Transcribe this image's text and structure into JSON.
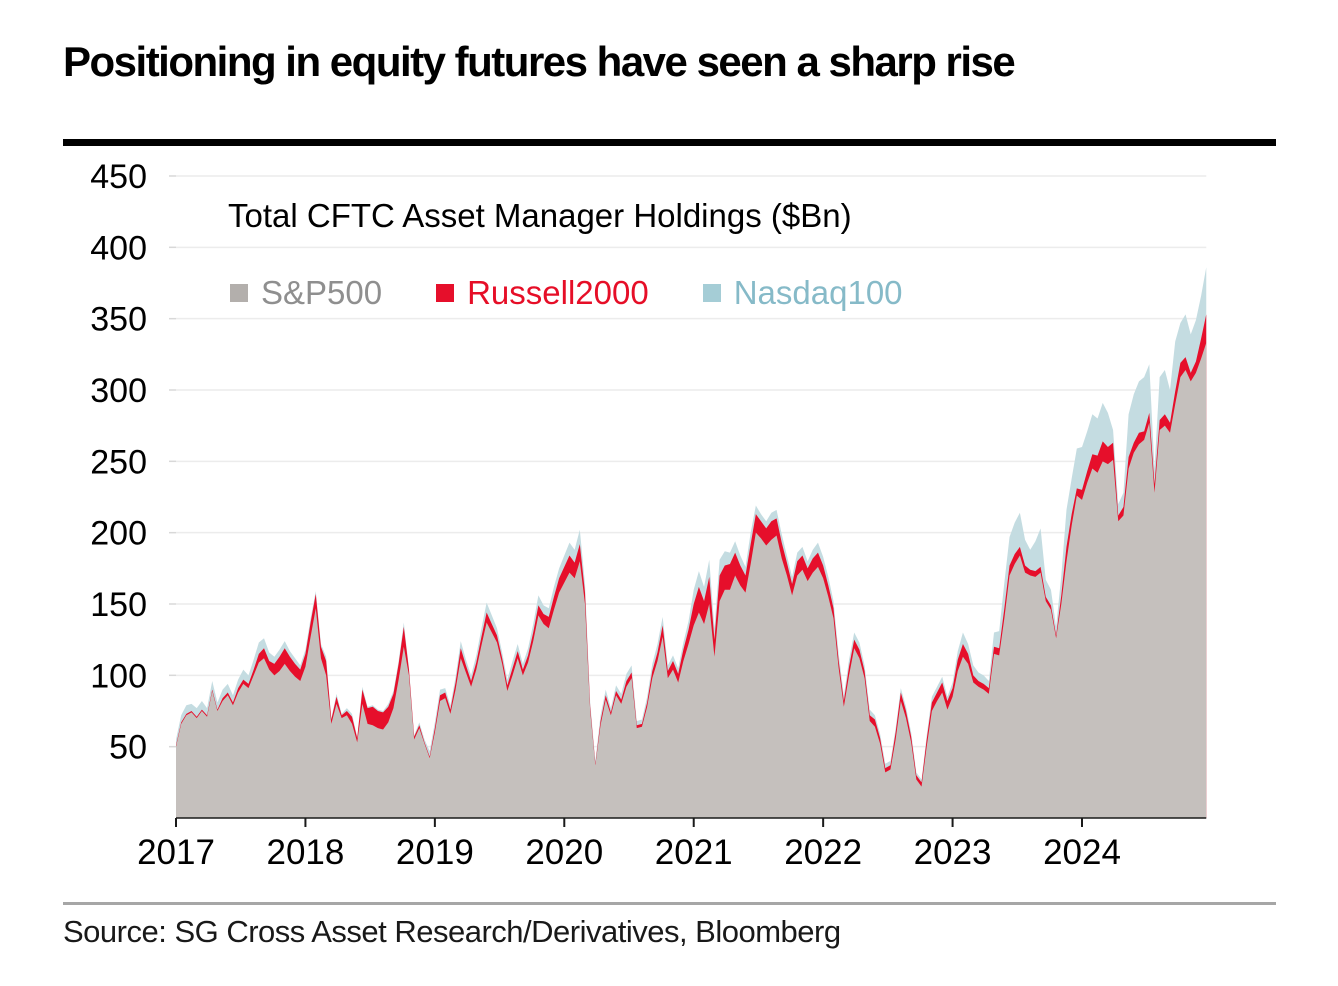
{
  "header": {
    "title": "Positioning in equity futures have seen a sharp rise"
  },
  "footer": {
    "source": "Source: SG Cross Asset Research/Derivatives, Bloomberg"
  },
  "colors": {
    "top_rule": "#000000",
    "source_rule": "#a6a6a6",
    "grid": "#ececec",
    "axis": "#1a1a1a",
    "tick_label": "#000000"
  },
  "chart_data": {
    "type": "area",
    "stacked": true,
    "title": "Total CFTC Asset Manager Holdings ($Bn)",
    "xlabel": "",
    "ylabel": "",
    "x_unit": "year",
    "x_start_year": 2017.0,
    "x_step_years": 0.04,
    "x_tick_labels": [
      "2017",
      "2018",
      "2019",
      "2020",
      "2021",
      "2022",
      "2023",
      "2024"
    ],
    "y_ticks": [
      50,
      100,
      150,
      200,
      250,
      300,
      350,
      400,
      450
    ],
    "ylim": [
      0,
      465
    ],
    "grid": "horizontal",
    "legend_position": "top-left-inside",
    "series": [
      {
        "name": "S&P500",
        "area_color": "#c5c0bd",
        "swatch_color": "#b3afac",
        "label_color": "#8f8f8f",
        "values": [
          50,
          66,
          72,
          74,
          70,
          75,
          71,
          89,
          75,
          82,
          86,
          79,
          88,
          94,
          91,
          100,
          109,
          112,
          104,
          100,
          103,
          108,
          103,
          99,
          96,
          106,
          127,
          147,
          112,
          100,
          66,
          80,
          70,
          72,
          66,
          53,
          80,
          66,
          65,
          63,
          62,
          67,
          77,
          97,
          120,
          100,
          55,
          63,
          52,
          42,
          60,
          82,
          84,
          73,
          90,
          112,
          102,
          92,
          104,
          121,
          137,
          130,
          123,
          108,
          89,
          100,
          112,
          100,
          109,
          124,
          142,
          136,
          133,
          146,
          158,
          165,
          172,
          168,
          180,
          150,
          75,
          37,
          65,
          83,
          72,
          86,
          80,
          92,
          98,
          63,
          64,
          78,
          98,
          110,
          127,
          98,
          104,
          95,
          110,
          122,
          135,
          144,
          136,
          150,
          113,
          152,
          160,
          160,
          170,
          163,
          158,
          178,
          200,
          196,
          191,
          195,
          198,
          182,
          170,
          156,
          170,
          174,
          166,
          172,
          176,
          168,
          155,
          140,
          105,
          78,
          100,
          119,
          112,
          98,
          68,
          64,
          52,
          32,
          34,
          55,
          82,
          70,
          53,
          27,
          22,
          50,
          75,
          82,
          88,
          76,
          85,
          103,
          113,
          108,
          95,
          92,
          90,
          87,
          115,
          114,
          140,
          170,
          178,
          184,
          172,
          170,
          169,
          172,
          152,
          146,
          126,
          150,
          180,
          205,
          226,
          223,
          235,
          245,
          242,
          250,
          248,
          251,
          208,
          212,
          245,
          256,
          262,
          265,
          277,
          228,
          272,
          275,
          270,
          290,
          309,
          314,
          306,
          312,
          322,
          333
        ]
      },
      {
        "name": "Russell2000",
        "area_color": "#e60f2b",
        "swatch_color": "#e60f2b",
        "label_color": "#e60e27",
        "values": [
          1,
          1,
          1,
          1,
          1,
          1,
          1,
          1,
          1,
          2,
          2,
          2,
          3,
          3,
          3,
          4,
          6,
          7,
          6,
          8,
          10,
          11,
          10,
          9,
          8,
          9,
          10,
          10,
          8,
          10,
          3,
          5,
          2,
          3,
          5,
          3,
          10,
          11,
          13,
          12,
          12,
          11,
          10,
          11,
          14,
          4,
          2,
          2,
          1,
          1,
          3,
          4,
          4,
          3,
          5,
          7,
          5,
          4,
          5,
          6,
          7,
          6,
          5,
          4,
          4,
          5,
          5,
          4,
          5,
          6,
          7,
          7,
          8,
          9,
          10,
          11,
          12,
          11,
          12,
          8,
          3,
          1,
          3,
          3,
          2,
          3,
          3,
          4,
          4,
          2,
          2,
          3,
          5,
          6,
          8,
          5,
          6,
          6,
          8,
          10,
          15,
          18,
          16,
          19,
          12,
          18,
          17,
          18,
          16,
          14,
          12,
          14,
          13,
          12,
          12,
          13,
          12,
          11,
          9,
          8,
          10,
          10,
          9,
          10,
          10,
          9,
          8,
          7,
          5,
          4,
          6,
          6,
          6,
          5,
          4,
          5,
          4,
          3,
          3,
          5,
          6,
          5,
          4,
          3,
          3,
          5,
          6,
          6,
          7,
          6,
          6,
          8,
          9,
          7,
          5,
          4,
          4,
          4,
          5,
          5,
          7,
          7,
          7,
          6,
          5,
          4,
          4,
          4,
          3,
          3,
          2,
          6,
          10,
          8,
          5,
          7,
          8,
          10,
          12,
          14,
          12,
          12,
          4,
          6,
          8,
          7,
          8,
          6,
          7,
          6,
          7,
          8,
          7,
          9,
          10,
          9,
          6,
          8,
          14,
          20
        ]
      },
      {
        "name": "Nasdaq100",
        "area_color": "#c4dce1",
        "swatch_color": "#a5cdd6",
        "label_color": "#86bac8",
        "values": [
          4,
          5,
          6,
          5,
          6,
          6,
          5,
          6,
          5,
          6,
          6,
          5,
          6,
          7,
          6,
          7,
          8,
          7,
          6,
          5,
          5,
          5,
          4,
          4,
          3,
          3,
          3,
          2,
          2,
          3,
          1,
          2,
          1,
          2,
          2,
          1,
          2,
          1,
          1,
          1,
          1,
          2,
          2,
          2,
          3,
          1,
          1,
          2,
          2,
          4,
          4,
          4,
          3,
          3,
          4,
          5,
          4,
          4,
          5,
          6,
          7,
          6,
          5,
          4,
          4,
          5,
          5,
          4,
          5,
          6,
          7,
          6,
          6,
          7,
          7,
          8,
          9,
          9,
          10,
          6,
          3,
          2,
          4,
          4,
          3,
          4,
          4,
          5,
          5,
          3,
          3,
          4,
          5,
          6,
          6,
          4,
          4,
          4,
          5,
          6,
          10,
          11,
          10,
          12,
          8,
          11,
          10,
          8,
          8,
          7,
          6,
          8,
          6,
          5,
          5,
          6,
          6,
          6,
          5,
          5,
          6,
          6,
          5,
          6,
          7,
          6,
          6,
          5,
          5,
          4,
          5,
          5,
          5,
          4,
          4,
          3,
          3,
          3,
          3,
          3,
          3,
          3,
          3,
          2,
          2,
          3,
          4,
          4,
          4,
          3,
          4,
          6,
          8,
          7,
          7,
          6,
          6,
          5,
          10,
          12,
          18,
          20,
          22,
          24,
          18,
          14,
          21,
          27,
          12,
          11,
          6,
          14,
          26,
          25,
          28,
          30,
          28,
          28,
          26,
          27,
          24,
          9,
          8,
          10,
          30,
          34,
          36,
          38,
          34,
          11,
          30,
          31,
          23,
          35,
          28,
          30,
          27,
          29,
          30,
          33
        ]
      }
    ]
  }
}
